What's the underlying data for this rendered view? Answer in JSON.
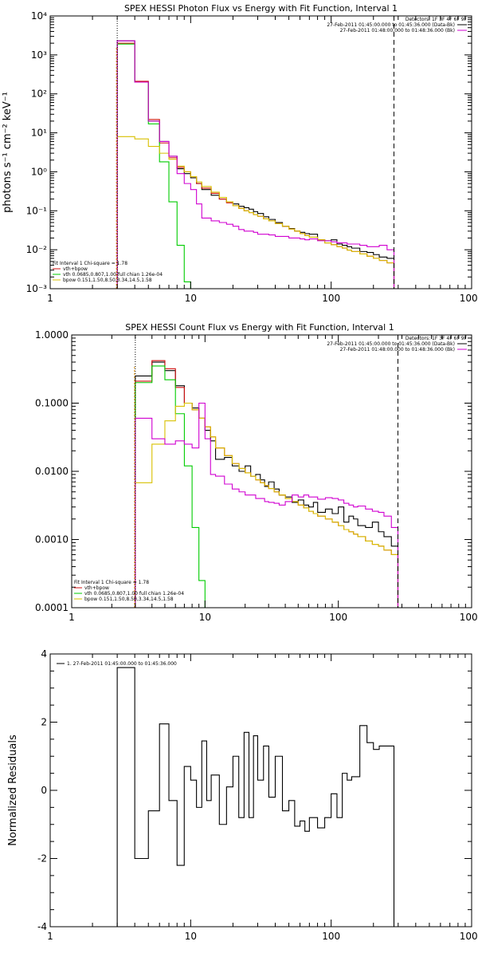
{
  "colors": {
    "total": "#000000",
    "residual": "#000000",
    "bk": "#d000d0",
    "vth_bpow": "#d01010",
    "vth": "#00cc00",
    "bpow": "#d8c000",
    "marker": "#000000",
    "lowlimit": "#e89000"
  },
  "chart_data": [
    {
      "id": "photon",
      "type": "line",
      "title": "SPEX HESSI Photon Flux vs Energy with Fit Function, Interval 1",
      "xlabel": "",
      "ylabel": "photons s⁻¹ cm⁻² keV⁻¹",
      "xscale": "log",
      "yscale": "log",
      "xlim": [
        1,
        1000
      ],
      "ylim": [
        0.001,
        10000
      ],
      "xticks": [
        1,
        10,
        100,
        1000
      ],
      "xtick_labels": [
        "1",
        "10",
        "100",
        "1000"
      ],
      "yticks": [
        0.001,
        0.01,
        0.1,
        1,
        10,
        100,
        1000,
        10000
      ],
      "ytick_labels": [
        "10⁻³",
        "10⁻²",
        "10⁻¹",
        "10⁰",
        "10¹",
        "10²",
        "10³",
        "10⁴"
      ],
      "vlines": [
        {
          "x": 3,
          "style": "dotted"
        },
        {
          "x": 280,
          "style": "dashed"
        }
      ],
      "legend_top": {
        "position": "top-right",
        "header": "Detectors: 1F 3F 4F 6F 9F",
        "entries": [
          {
            "label": "27-Feb-2011 01:45:00.000 to 01:45:36.000 (Data-Bk)",
            "color_key": "total"
          },
          {
            "label": "27-Feb-2011 01:48:00.000 to 01:48:36.000 (Bk)",
            "color_key": "bk"
          }
        ]
      },
      "legend_bottom": {
        "position": "bottom-left",
        "header": "Fit Interval 1    Chi-square = 1.78",
        "entries": [
          {
            "label": "vth+bpow",
            "color_key": "vth_bpow"
          },
          {
            "label": "vth 0.0685,0.807,1.00  full chian 1.26e-04",
            "color_key": "vth"
          },
          {
            "label": "bpow 0.151,1.50,8.50,3.34,14.5,1.58",
            "color_key": "bpow"
          }
        ]
      },
      "series": [
        {
          "name": "",
          "color_key": "total",
          "edges": [
            3,
            4,
            5,
            6,
            7,
            8,
            9,
            10,
            11,
            12,
            14,
            16,
            18,
            20,
            22,
            24,
            26,
            28,
            30,
            33,
            36,
            40,
            45,
            50,
            55,
            60,
            65,
            70,
            80,
            90,
            100,
            110,
            120,
            130,
            140,
            160,
            180,
            200,
            220,
            250,
            280
          ],
          "values": [
            2300,
            200,
            20,
            6,
            2.5,
            1.2,
            0.9,
            0.7,
            0.5,
            0.35,
            0.25,
            0.2,
            0.17,
            0.15,
            0.13,
            0.12,
            0.11,
            0.095,
            0.085,
            0.07,
            0.06,
            0.05,
            0.04,
            0.035,
            0.03,
            0.028,
            0.026,
            0.025,
            0.018,
            0.017,
            0.018,
            0.014,
            0.013,
            0.012,
            0.011,
            0.009,
            0.0085,
            0.0075,
            0.0065,
            0.006
          ]
        },
        {
          "name": "",
          "color_key": "vth_bpow",
          "edges": [
            3,
            4,
            5,
            6,
            7,
            8,
            9,
            10,
            11,
            12,
            14,
            16,
            18,
            20,
            22,
            24,
            26,
            28,
            30,
            33,
            36,
            40,
            45,
            50,
            55,
            60,
            65,
            70,
            80,
            90,
            100,
            110,
            120,
            130,
            140,
            160,
            180,
            200,
            220,
            250,
            280
          ],
          "values": [
            2000,
            210,
            22,
            5.5,
            2.3,
            1.3,
            1.0,
            0.75,
            0.5,
            0.38,
            0.28,
            0.2,
            0.16,
            0.135,
            0.115,
            0.1,
            0.09,
            0.08,
            0.072,
            0.062,
            0.055,
            0.047,
            0.04,
            0.034,
            0.03,
            0.026,
            0.023,
            0.021,
            0.018,
            0.015,
            0.0135,
            0.012,
            0.011,
            0.0098,
            0.009,
            0.0078,
            0.0068,
            0.006,
            0.0053,
            0.0046
          ]
        },
        {
          "name": "",
          "color_key": "vth",
          "edges": [
            3,
            4,
            5,
            6,
            7,
            8,
            9,
            10
          ],
          "values": [
            1900,
            200,
            17,
            1.8,
            0.17,
            0.013,
            0.0015
          ]
        },
        {
          "name": "",
          "color_key": "bpow",
          "edges": [
            3,
            4,
            5,
            6,
            7,
            8,
            9,
            10,
            11,
            12,
            14,
            16,
            18,
            20,
            22,
            24,
            26,
            28,
            30,
            33,
            36,
            40,
            45,
            50,
            55,
            60,
            65,
            70,
            80,
            90,
            100,
            110,
            120,
            130,
            140,
            160,
            180,
            200,
            220,
            250,
            280
          ],
          "values": [
            8,
            7,
            4.5,
            3.0,
            2.1,
            1.4,
            1.0,
            0.75,
            0.55,
            0.42,
            0.3,
            0.22,
            0.17,
            0.135,
            0.115,
            0.1,
            0.09,
            0.08,
            0.072,
            0.062,
            0.055,
            0.047,
            0.04,
            0.034,
            0.03,
            0.026,
            0.023,
            0.021,
            0.018,
            0.015,
            0.0135,
            0.012,
            0.011,
            0.0098,
            0.009,
            0.0078,
            0.0068,
            0.006,
            0.0053,
            0.0046
          ]
        },
        {
          "name": "",
          "color_key": "bk",
          "edges": [
            3,
            4,
            5,
            6,
            7,
            8,
            9,
            10,
            11,
            12,
            14,
            16,
            18,
            20,
            22,
            24,
            26,
            28,
            30,
            33,
            36,
            40,
            45,
            50,
            55,
            60,
            65,
            70,
            80,
            90,
            100,
            110,
            120,
            130,
            140,
            160,
            180,
            200,
            220,
            250,
            280
          ],
          "values": [
            2300,
            200,
            20,
            6,
            2.5,
            0.9,
            0.5,
            0.35,
            0.15,
            0.065,
            0.055,
            0.05,
            0.045,
            0.04,
            0.033,
            0.03,
            0.03,
            0.028,
            0.025,
            0.025,
            0.024,
            0.022,
            0.022,
            0.02,
            0.02,
            0.019,
            0.018,
            0.019,
            0.017,
            0.017,
            0.016,
            0.015,
            0.015,
            0.014,
            0.014,
            0.013,
            0.012,
            0.012,
            0.013,
            0.01
          ]
        }
      ]
    },
    {
      "id": "count",
      "type": "line",
      "title": "SPEX HESSI Count Flux vs Energy with Fit Function, Interval 1",
      "xlabel": "",
      "ylabel": "",
      "xscale": "log",
      "yscale": "log",
      "xlim": [
        1,
        1000
      ],
      "ylim": [
        0.0001,
        1
      ],
      "xticks": [
        1,
        10,
        100,
        1000
      ],
      "xtick_labels": [
        "1",
        "10",
        "100",
        "1000"
      ],
      "yticks": [
        0.0001,
        0.001,
        0.01,
        0.1,
        1
      ],
      "ytick_labels": [
        "0.0001",
        "0.0010",
        "0.0100",
        "0.1000",
        "1.0000"
      ],
      "vlines": [
        {
          "x": 3,
          "style": "dotted"
        },
        {
          "x": 280,
          "style": "dashed"
        }
      ],
      "legend_top": {
        "position": "top-right",
        "header": "Detectors: 1F 3F 4F 6F 9F",
        "entries": [
          {
            "label": "27-Feb-2011 01:45:00.000 to 01:45:36.000 (Data-Bk)",
            "color_key": "total"
          },
          {
            "label": "27-Feb-2011 01:48:00.000 to 01:48:36.000 (Bk)",
            "color_key": "bk"
          }
        ]
      },
      "legend_bottom": {
        "position": "bottom-left",
        "header": "Fit Interval 1    Chi-square = 1.78",
        "entries": [
          {
            "label": "vth+bpow",
            "color_key": "vth_bpow"
          },
          {
            "label": "vth 0.0685,0.807,1.00  full chian 1.26e-04",
            "color_key": "vth"
          },
          {
            "label": "bpow 0.151,1.50,8.50,3.34,14.5,1.58",
            "color_key": "bpow"
          }
        ]
      },
      "series": [
        {
          "name": "",
          "color_key": "total",
          "edges": [
            3,
            4,
            5,
            6,
            7,
            8,
            9,
            10,
            11,
            12,
            14,
            16,
            18,
            20,
            22,
            24,
            26,
            28,
            30,
            33,
            36,
            40,
            45,
            50,
            55,
            60,
            65,
            70,
            80,
            90,
            100,
            110,
            120,
            130,
            140,
            160,
            180,
            200,
            220,
            250,
            280
          ],
          "values": [
            0.25,
            0.4,
            0.3,
            0.18,
            0.1,
            0.085,
            0.06,
            0.04,
            0.028,
            0.015,
            0.016,
            0.012,
            0.01,
            0.012,
            0.0085,
            0.009,
            0.0075,
            0.006,
            0.007,
            0.0055,
            0.0045,
            0.0042,
            0.0035,
            0.0038,
            0.0032,
            0.003,
            0.0035,
            0.0025,
            0.0028,
            0.0024,
            0.003,
            0.0018,
            0.0022,
            0.002,
            0.0016,
            0.0015,
            0.0018,
            0.0013,
            0.0011,
            0.0008
          ]
        },
        {
          "name": "",
          "color_key": "vth_bpow",
          "edges": [
            3,
            4,
            5,
            6,
            7,
            8,
            9,
            10,
            11,
            12,
            14,
            16,
            18,
            20,
            22,
            24,
            26,
            28,
            30,
            33,
            36,
            40,
            45,
            50,
            55,
            60,
            65,
            70,
            80,
            90,
            100,
            110,
            120,
            130,
            140,
            160,
            180,
            200,
            220,
            250,
            280
          ],
          "values": [
            0.21,
            0.42,
            0.32,
            0.17,
            0.1,
            0.08,
            0.06,
            0.045,
            0.032,
            0.022,
            0.017,
            0.013,
            0.011,
            0.0095,
            0.0085,
            0.0075,
            0.0068,
            0.0062,
            0.0056,
            0.005,
            0.0045,
            0.004,
            0.0036,
            0.0032,
            0.0029,
            0.0026,
            0.0024,
            0.0022,
            0.002,
            0.0018,
            0.0016,
            0.0014,
            0.0013,
            0.0012,
            0.0011,
            0.00095,
            0.00085,
            0.0008,
            0.0007,
            0.0006
          ]
        },
        {
          "name": "",
          "color_key": "vth",
          "edges": [
            3,
            4,
            5,
            6,
            7,
            8,
            9,
            10,
            11
          ],
          "values": [
            0.2,
            0.35,
            0.22,
            0.07,
            0.012,
            0.0015,
            0.00025,
            0.0001
          ]
        },
        {
          "name": "",
          "color_key": "bpow",
          "edges": [
            3,
            4,
            5,
            6,
            7,
            8,
            9,
            10,
            11,
            12,
            14,
            16,
            18,
            20,
            22,
            24,
            26,
            28,
            30,
            33,
            36,
            40,
            45,
            50,
            55,
            60,
            65,
            70,
            80,
            90,
            100,
            110,
            120,
            130,
            140,
            160,
            180,
            200,
            220,
            250,
            280
          ],
          "values": [
            0.0068,
            0.025,
            0.055,
            0.09,
            0.1,
            0.08,
            0.06,
            0.045,
            0.032,
            0.022,
            0.017,
            0.013,
            0.011,
            0.0095,
            0.0085,
            0.0075,
            0.0068,
            0.0062,
            0.0056,
            0.005,
            0.0045,
            0.004,
            0.0036,
            0.0032,
            0.0029,
            0.0026,
            0.0024,
            0.0022,
            0.002,
            0.0018,
            0.0016,
            0.0014,
            0.0013,
            0.0012,
            0.0011,
            0.00095,
            0.00085,
            0.0008,
            0.0007,
            0.0006
          ]
        },
        {
          "name": "",
          "color_key": "bk",
          "edges": [
            3,
            4,
            5,
            6,
            7,
            8,
            9,
            10,
            11,
            12,
            14,
            16,
            18,
            20,
            22,
            24,
            26,
            28,
            30,
            33,
            36,
            40,
            45,
            50,
            55,
            60,
            65,
            70,
            80,
            90,
            100,
            110,
            120,
            130,
            140,
            160,
            180,
            200,
            220,
            250,
            280
          ],
          "values": [
            0.06,
            0.03,
            0.025,
            0.028,
            0.025,
            0.022,
            0.1,
            0.03,
            0.009,
            0.0085,
            0.0065,
            0.0055,
            0.005,
            0.0045,
            0.0045,
            0.004,
            0.004,
            0.0036,
            0.0035,
            0.0034,
            0.0032,
            0.0036,
            0.0045,
            0.0042,
            0.0045,
            0.0042,
            0.0042,
            0.0039,
            0.0041,
            0.004,
            0.0038,
            0.0034,
            0.0032,
            0.003,
            0.0031,
            0.0028,
            0.0026,
            0.0025,
            0.0022,
            0.0015
          ]
        }
      ]
    },
    {
      "id": "residual",
      "type": "line",
      "title": "",
      "xlabel": "",
      "ylabel": "Normalized Residuals",
      "xscale": "log",
      "yscale": "linear",
      "xlim": [
        1,
        1000
      ],
      "ylim": [
        -4,
        4
      ],
      "xticks": [
        1,
        10,
        100,
        1000
      ],
      "xtick_labels": [
        "1",
        "10",
        "100",
        "1000"
      ],
      "yticks": [
        -4,
        -2,
        0,
        2,
        4
      ],
      "ytick_labels": [
        "-4",
        "-2",
        "0",
        "2",
        "4"
      ],
      "legend_top": {
        "position": "top-left",
        "header": "",
        "entries": [
          {
            "label": "1. 27-Feb-2011 01:45:00.000 to 01:45:36.000",
            "color_key": "residual"
          }
        ]
      },
      "series": [
        {
          "name": "",
          "color_key": "residual",
          "edges": [
            3,
            4,
            5,
            6,
            7,
            8,
            9,
            10,
            11,
            12,
            13,
            14,
            16,
            18,
            20,
            22,
            24,
            26,
            28,
            30,
            33,
            36,
            40,
            45,
            50,
            55,
            60,
            65,
            70,
            80,
            90,
            100,
            110,
            120,
            130,
            140,
            160,
            180,
            200,
            220,
            250,
            280
          ],
          "values": [
            3.6,
            -2.0,
            -0.6,
            1.95,
            -0.3,
            -2.2,
            0.7,
            0.3,
            -0.5,
            1.45,
            -0.3,
            0.45,
            -1.0,
            0.1,
            1.0,
            -0.8,
            1.7,
            -0.8,
            1.6,
            0.3,
            1.3,
            -0.2,
            1.0,
            -0.6,
            -0.3,
            -1.05,
            -0.9,
            -1.2,
            -0.8,
            -1.1,
            -0.8,
            -0.1,
            -0.8,
            0.5,
            0.3,
            0.4,
            1.9,
            1.4,
            1.2,
            1.3,
            1.3
          ]
        }
      ]
    }
  ]
}
